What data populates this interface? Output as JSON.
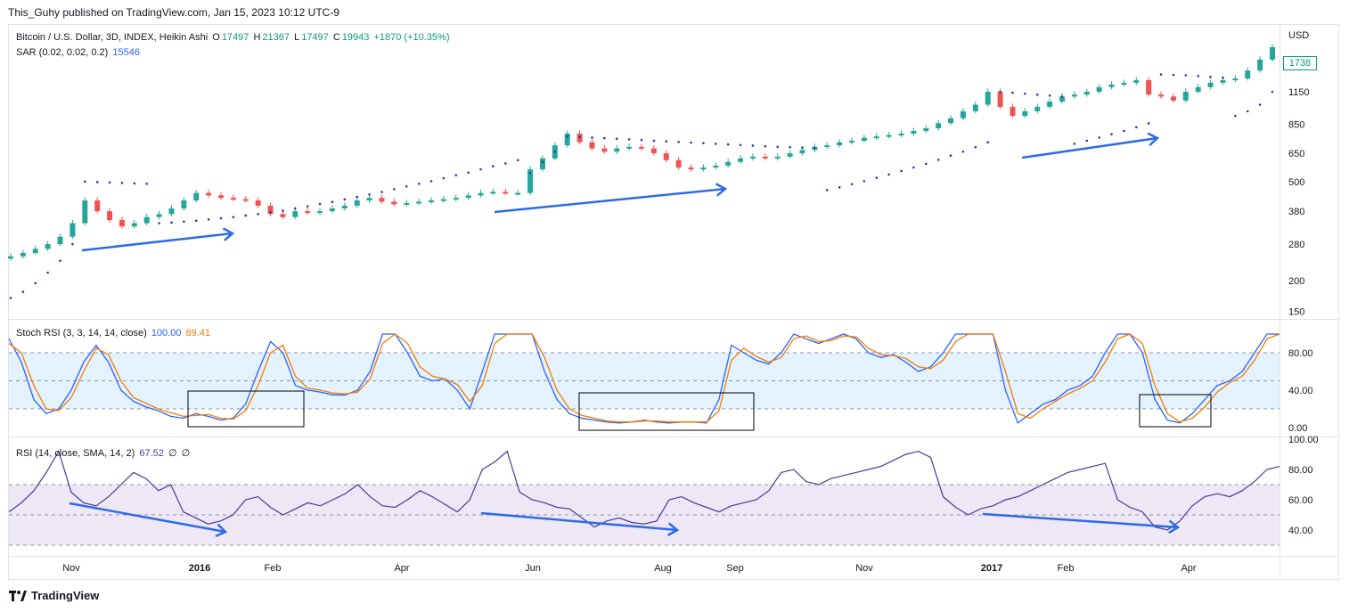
{
  "header": {
    "published": "This_Guhy published on TradingView.com, Jan 15, 2023 10:12 UTC-9"
  },
  "main_legend": {
    "title": "Bitcoin / U.S. Dollar, 3D, INDEX, Heikin Ashi",
    "o_label": "O",
    "o_value": "17497",
    "h_label": "H",
    "h_value": "21367",
    "l_label": "L",
    "l_value": "17497",
    "c_label": "C",
    "c_value": "19943",
    "change": "+1870 (+10.35%)"
  },
  "sar_legend": {
    "label": "SAR (0.02, 0.02, 0.2)",
    "value": "15546"
  },
  "stoch_legend": {
    "label": "Stoch RSI (3, 3, 14, 14, close)",
    "k_value": "100.00",
    "d_value": "89.41"
  },
  "rsi_legend": {
    "label": "RSI (14, close, SMA, 14, 2)",
    "value": "67.52",
    "extra1": "∅",
    "extra2": "∅"
  },
  "price_axis": {
    "currency": "USD",
    "last_price": "1738"
  },
  "footer": {
    "brand": "TradingView"
  },
  "colors": {
    "up": "#26a69a",
    "down": "#ef5350",
    "sar": "#2a3ab0",
    "arrow": "#2e6be6",
    "stoch_k": "#2962ff",
    "stoch_d": "#f57c00",
    "rsi": "#4a3a99",
    "stoch_band": "#e3f2fd",
    "rsi_band": "#ede7f6"
  },
  "chart_data": [
    {
      "type": "candlestick",
      "scale": "log",
      "yticks": [
        150,
        200,
        280,
        380,
        500,
        650,
        850,
        1150
      ],
      "xticks": [
        "Nov",
        "2016",
        "Feb",
        "Apr",
        "Jun",
        "Aug",
        "Sep",
        "Nov",
        "2017",
        "Feb",
        "Apr"
      ],
      "close_series": [
        250,
        258,
        268,
        280,
        300,
        340,
        420,
        380,
        350,
        330,
        340,
        360,
        370,
        390,
        420,
        450,
        440,
        430,
        425,
        420,
        400,
        370,
        360,
        380,
        375,
        380,
        390,
        400,
        420,
        430,
        415,
        405,
        410,
        415,
        420,
        425,
        430,
        440,
        450,
        455,
        450,
        450,
        560,
        620,
        700,
        780,
        720,
        680,
        660,
        680,
        690,
        680,
        650,
        610,
        570,
        560,
        570,
        580,
        600,
        620,
        630,
        620,
        630,
        650,
        670,
        690,
        700,
        720,
        730,
        750,
        760,
        770,
        780,
        800,
        820,
        860,
        900,
        960,
        1020,
        1150,
        1000,
        920,
        960,
        1000,
        1050,
        1100,
        1120,
        1150,
        1200,
        1230,
        1250,
        1280,
        1120,
        1100,
        1060,
        1150,
        1200,
        1250,
        1280,
        1300,
        1400,
        1550,
        1738
      ],
      "sar_series": [
        170,
        180,
        195,
        215,
        240,
        280,
        500,
        498,
        496,
        494,
        492,
        490,
        340,
        342,
        345,
        348,
        352,
        356,
        360,
        365,
        370,
        376,
        382,
        390,
        398,
        406,
        414,
        424,
        434,
        444,
        454,
        466,
        478,
        490,
        502,
        516,
        530,
        544,
        560,
        576,
        592,
        610,
        540,
        600,
        660,
        760,
        756,
        752,
        748,
        744,
        740,
        735,
        730,
        726,
        722,
        718,
        714,
        710,
        706,
        702,
        698,
        694,
        690,
        688,
        686,
        684,
        462,
        474,
        488,
        502,
        518,
        534,
        552,
        570,
        590,
        612,
        636,
        660,
        688,
        720,
        1150,
        1140,
        1130,
        1120,
        1110,
        1100,
        710,
        730,
        752,
        776,
        800,
        828,
        858,
        1350,
        1345,
        1340,
        1330,
        1320,
        1310,
        920,
        960,
        1020,
        1150
      ]
    },
    {
      "type": "line",
      "title": "Stoch RSI (3, 3, 14, 14, close)",
      "ylim": [
        0,
        100
      ],
      "yticks": [
        0,
        40,
        80
      ],
      "series": [
        {
          "name": "K",
          "values": [
            95,
            70,
            30,
            15,
            20,
            40,
            70,
            88,
            70,
            40,
            28,
            22,
            18,
            12,
            10,
            15,
            12,
            8,
            10,
            25,
            60,
            92,
            80,
            45,
            40,
            38,
            35,
            35,
            40,
            60,
            100,
            100,
            80,
            55,
            50,
            52,
            40,
            20,
            60,
            100,
            100,
            100,
            100,
            60,
            30,
            15,
            10,
            8,
            6,
            5,
            6,
            8,
            6,
            5,
            6,
            6,
            5,
            30,
            88,
            80,
            72,
            68,
            80,
            100,
            95,
            90,
            95,
            100,
            95,
            80,
            75,
            78,
            70,
            60,
            65,
            80,
            100,
            100,
            100,
            100,
            40,
            5,
            15,
            25,
            30,
            40,
            45,
            55,
            80,
            100,
            100,
            80,
            30,
            8,
            5,
            15,
            30,
            45,
            50,
            60,
            80,
            100,
            100
          ]
        },
        {
          "name": "D",
          "values": [
            90,
            80,
            45,
            20,
            18,
            32,
            60,
            85,
            78,
            50,
            32,
            26,
            20,
            16,
            12,
            13,
            14,
            10,
            9,
            18,
            45,
            80,
            88,
            55,
            42,
            40,
            37,
            36,
            38,
            52,
            90,
            100,
            90,
            65,
            55,
            52,
            46,
            28,
            45,
            90,
            100,
            100,
            100,
            75,
            40,
            20,
            13,
            10,
            7,
            6,
            6,
            7,
            7,
            6,
            6,
            6,
            6,
            18,
            72,
            85,
            76,
            70,
            75,
            95,
            98,
            92,
            93,
            98,
            97,
            85,
            78,
            77,
            74,
            65,
            63,
            72,
            92,
            100,
            100,
            100,
            60,
            15,
            10,
            20,
            28,
            36,
            42,
            50,
            70,
            95,
            100,
            90,
            45,
            15,
            6,
            10,
            22,
            38,
            48,
            55,
            72,
            95,
            100
          ]
        }
      ]
    },
    {
      "type": "line",
      "title": "RSI (14, close, SMA, 14, 2)",
      "ylim": [
        30,
        100
      ],
      "yticks": [
        40,
        60,
        80,
        100
      ],
      "series": [
        {
          "name": "RSI",
          "values": [
            52,
            58,
            66,
            78,
            92,
            65,
            58,
            56,
            62,
            70,
            78,
            74,
            66,
            70,
            52,
            48,
            44,
            46,
            50,
            60,
            62,
            55,
            50,
            54,
            58,
            56,
            60,
            64,
            70,
            62,
            56,
            55,
            60,
            66,
            62,
            57,
            52,
            60,
            80,
            85,
            92,
            65,
            60,
            58,
            55,
            54,
            48,
            42,
            46,
            48,
            45,
            44,
            46,
            60,
            62,
            58,
            55,
            52,
            56,
            58,
            60,
            66,
            78,
            80,
            72,
            70,
            74,
            76,
            78,
            80,
            82,
            86,
            90,
            92,
            88,
            62,
            55,
            50,
            54,
            56,
            60,
            62,
            66,
            70,
            74,
            78,
            80,
            82,
            84,
            60,
            55,
            52,
            42,
            40,
            46,
            56,
            62,
            64,
            62,
            66,
            72,
            80,
            82
          ]
        }
      ]
    }
  ]
}
